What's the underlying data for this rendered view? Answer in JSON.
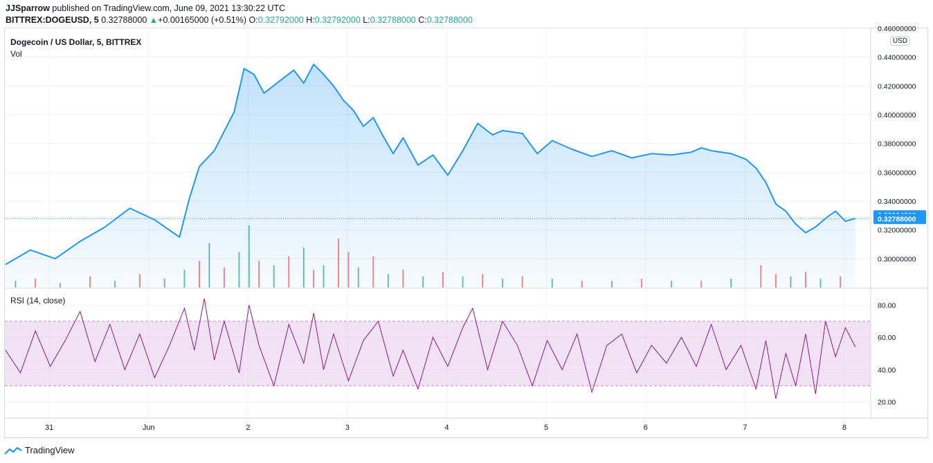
{
  "header": {
    "author": "JJSparrow",
    "published": "published on TradingView.com, June 09, 2021 13:30:22 UTC",
    "symbol": "BITTREX:DOGEUSD, 5",
    "price": "0.32788000",
    "change_arrow": "▲",
    "change": "+0.00165000 (+0.51%)",
    "o_label": "O:",
    "o_value": "0.32792000",
    "h_label": "H:",
    "h_value": "0.32792000",
    "l_label": "L:",
    "l_value": "0.32788000",
    "c_label": "C:",
    "c_value": "0.32788000"
  },
  "main_pane": {
    "title": "Dogecoin / US Dollar, 5, BITTREX",
    "volume_label": "Vol",
    "currency_badge": "USD"
  },
  "rsi_pane": {
    "title": "RSI (14, close)"
  },
  "footer": {
    "brand": "TradingView"
  },
  "colors": {
    "price_line": "#2196f3",
    "area_fill": "#2196f3",
    "volume_up": "#26a69a",
    "volume_down": "#ef5350",
    "rsi_line": "#8e1599",
    "rsi_band": "#e1bee7",
    "badge_bg": "#2196f3"
  },
  "chart_data": [
    {
      "type": "area",
      "name": "price",
      "x_ticks": [
        "31",
        "Jun",
        "2",
        "3",
        "4",
        "5",
        "6",
        "7",
        "8"
      ],
      "y_ticks": [
        "0.30000000",
        "0.32000000",
        "0.34000000",
        "0.36000000",
        "0.38000000",
        "0.40000000",
        "0.42000000",
        "0.44000000",
        "0.46000000"
      ],
      "ylim": [
        0.28,
        0.46
      ],
      "x": [
        0.0,
        0.25,
        0.5,
        0.75,
        1.0,
        1.25,
        1.5,
        1.75,
        1.85,
        1.95,
        2.1,
        2.3,
        2.4,
        2.5,
        2.6,
        2.75,
        2.9,
        3.0,
        3.1,
        3.2,
        3.3,
        3.4,
        3.5,
        3.6,
        3.7,
        3.8,
        3.9,
        4.0,
        4.15,
        4.3,
        4.45,
        4.6,
        4.75,
        4.9,
        5.0,
        5.2,
        5.35,
        5.5,
        5.7,
        5.9,
        6.1,
        6.3,
        6.5,
        6.7,
        6.9,
        7.0,
        7.1,
        7.3,
        7.45,
        7.55,
        7.65,
        7.75,
        7.85,
        7.95,
        8.05,
        8.15,
        8.25,
        8.35,
        8.45,
        8.55
      ],
      "price": [
        0.296,
        0.306,
        0.3,
        0.312,
        0.322,
        0.335,
        0.327,
        0.315,
        0.342,
        0.364,
        0.375,
        0.402,
        0.432,
        0.428,
        0.415,
        0.423,
        0.431,
        0.422,
        0.435,
        0.428,
        0.42,
        0.41,
        0.403,
        0.392,
        0.398,
        0.385,
        0.373,
        0.384,
        0.365,
        0.372,
        0.358,
        0.375,
        0.394,
        0.386,
        0.389,
        0.387,
        0.373,
        0.382,
        0.376,
        0.371,
        0.375,
        0.37,
        0.373,
        0.372,
        0.374,
        0.377,
        0.375,
        0.373,
        0.369,
        0.363,
        0.353,
        0.338,
        0.333,
        0.324,
        0.318,
        0.322,
        0.328,
        0.333,
        0.326,
        0.328
      ],
      "last_close": "0.32788000",
      "high_tag": "0.32934000",
      "volume_x": [
        0.1,
        0.3,
        0.55,
        0.85,
        1.1,
        1.35,
        1.6,
        1.8,
        1.95,
        2.05,
        2.2,
        2.35,
        2.45,
        2.55,
        2.7,
        2.85,
        3.0,
        3.1,
        3.2,
        3.35,
        3.45,
        3.55,
        3.7,
        3.85,
        4.0,
        4.2,
        4.4,
        4.6,
        4.8,
        5.0,
        5.2,
        5.5,
        5.8,
        6.1,
        6.4,
        6.7,
        7.0,
        7.3,
        7.6,
        7.75,
        7.9,
        8.05,
        8.2,
        8.4
      ],
      "volume_values": [
        3,
        4,
        2,
        5,
        3,
        6,
        4,
        8,
        12,
        20,
        9,
        16,
        28,
        12,
        10,
        14,
        18,
        8,
        10,
        22,
        16,
        9,
        14,
        6,
        8,
        5,
        7,
        5,
        6,
        4,
        5,
        4,
        3,
        3,
        4,
        3,
        3,
        4,
        10,
        6,
        5,
        7,
        4,
        5
      ],
      "volume_up": [
        true,
        false,
        true,
        false,
        true,
        false,
        true,
        true,
        false,
        true,
        false,
        true,
        true,
        false,
        true,
        false,
        true,
        false,
        true,
        false,
        false,
        true,
        false,
        true,
        false,
        true,
        false,
        true,
        false,
        true,
        false,
        true,
        false,
        true,
        false,
        true,
        false,
        true,
        false,
        false,
        true,
        false,
        true,
        false
      ]
    },
    {
      "type": "line",
      "name": "RSI (14, close)",
      "y_ticks": [
        "20.00",
        "40.00",
        "60.00",
        "80.00"
      ],
      "ylim": [
        10,
        90
      ],
      "band": [
        30,
        70
      ],
      "x": [
        0.0,
        0.15,
        0.3,
        0.45,
        0.6,
        0.75,
        0.9,
        1.05,
        1.2,
        1.35,
        1.5,
        1.65,
        1.8,
        1.9,
        2.0,
        2.1,
        2.2,
        2.35,
        2.45,
        2.55,
        2.7,
        2.85,
        3.0,
        3.1,
        3.2,
        3.3,
        3.45,
        3.6,
        3.75,
        3.9,
        4.0,
        4.15,
        4.3,
        4.45,
        4.6,
        4.7,
        4.85,
        5.0,
        5.15,
        5.3,
        5.45,
        5.6,
        5.75,
        5.9,
        6.05,
        6.2,
        6.35,
        6.5,
        6.65,
        6.8,
        6.95,
        7.1,
        7.25,
        7.4,
        7.55,
        7.65,
        7.75,
        7.85,
        7.95,
        8.05,
        8.15,
        8.25,
        8.35,
        8.45,
        8.55
      ],
      "rsi": [
        52,
        38,
        64,
        42,
        58,
        76,
        45,
        68,
        40,
        62,
        35,
        55,
        78,
        52,
        84,
        46,
        70,
        38,
        80,
        55,
        30,
        68,
        44,
        75,
        40,
        62,
        33,
        58,
        70,
        36,
        52,
        28,
        60,
        42,
        66,
        78,
        40,
        70,
        55,
        30,
        58,
        40,
        62,
        26,
        55,
        62,
        38,
        55,
        44,
        60,
        42,
        68,
        40,
        55,
        28,
        58,
        22,
        50,
        30,
        62,
        25,
        70,
        48,
        66,
        54
      ]
    }
  ]
}
